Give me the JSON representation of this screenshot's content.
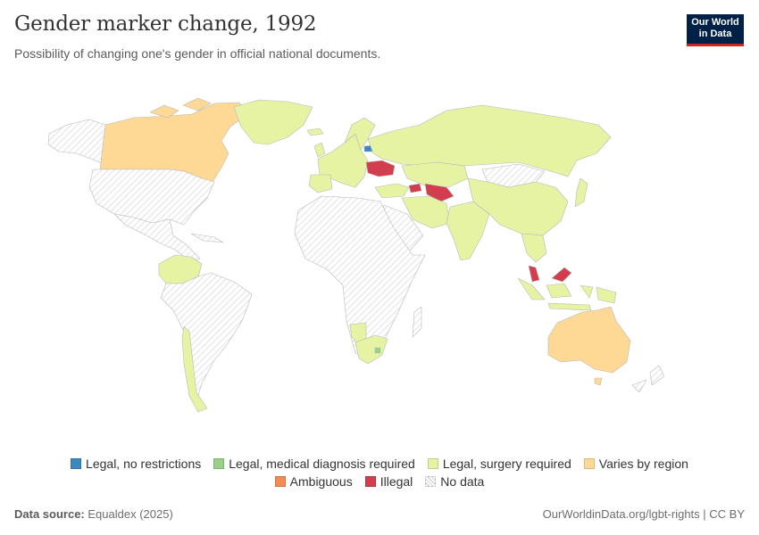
{
  "header": {
    "title": "Gender marker change, 1992",
    "subtitle": "Possibility of changing one's gender in official national documents.",
    "logo_line1": "Our World",
    "logo_line2": "in Data"
  },
  "colors": {
    "no_restrictions": "#3a88be",
    "medical": "#9ad188",
    "surgery": "#e5f3a3",
    "varies": "#fdd995",
    "ambiguous": "#f28b54",
    "illegal": "#d33e4e",
    "no_data": "#ffffff"
  },
  "legend": {
    "row1": [
      {
        "label": "Legal, no restrictions",
        "color": "#3a88be",
        "pattern": false
      },
      {
        "label": "Legal, medical diagnosis required",
        "color": "#9ad188",
        "pattern": false
      },
      {
        "label": "Legal, surgery required",
        "color": "#e5f3a3",
        "pattern": false
      },
      {
        "label": "Varies by region",
        "color": "#fdd995",
        "pattern": false
      }
    ],
    "row2": [
      {
        "label": "Ambiguous",
        "color": "#f28b54",
        "pattern": false
      },
      {
        "label": "Illegal",
        "color": "#d33e4e",
        "pattern": false
      },
      {
        "label": "No data",
        "color": "#ffffff",
        "pattern": true
      }
    ]
  },
  "footer": {
    "source_label": "Data source:",
    "source_value": "Equaldex (2025)",
    "url": "OurWorldinData.org/lgbt-rights | CC BY"
  }
}
